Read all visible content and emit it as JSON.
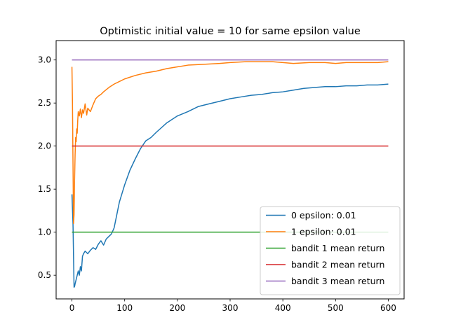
{
  "chart_data": {
    "type": "line",
    "title": "Optimistic initial value = 10 for same epsilon value",
    "xlabel": "",
    "ylabel": "",
    "xlim": [
      -30,
      630
    ],
    "ylim": [
      0.225,
      3.225
    ],
    "x_ticks": [
      0,
      100,
      200,
      300,
      400,
      500,
      600
    ],
    "x_tick_labels": [
      "0",
      "100",
      "200",
      "300",
      "400",
      "500",
      "600"
    ],
    "y_ticks": [
      0.5,
      1.0,
      1.5,
      2.0,
      2.5,
      3.0
    ],
    "y_tick_labels": [
      "0.5",
      "1.0",
      "1.5",
      "2.0",
      "2.5",
      "3.0"
    ],
    "grid": false,
    "legend_position": "lower-right",
    "series": [
      {
        "name": "0 epsilon: 0.01",
        "color": "#1f77b4",
        "x": [
          0,
          2,
          4,
          5,
          6,
          8,
          10,
          12,
          14,
          16,
          18,
          20,
          22,
          25,
          30,
          35,
          40,
          45,
          50,
          55,
          60,
          65,
          70,
          75,
          80,
          85,
          90,
          95,
          100,
          110,
          120,
          130,
          140,
          150,
          160,
          180,
          200,
          220,
          240,
          260,
          280,
          300,
          320,
          340,
          360,
          380,
          400,
          420,
          440,
          460,
          480,
          500,
          520,
          540,
          560,
          580,
          600
        ],
        "y": [
          1.44,
          1.1,
          0.36,
          0.37,
          0.4,
          0.45,
          0.5,
          0.55,
          0.5,
          0.6,
          0.55,
          0.72,
          0.75,
          0.78,
          0.75,
          0.79,
          0.82,
          0.8,
          0.86,
          0.9,
          0.85,
          0.92,
          0.95,
          0.98,
          1.05,
          1.2,
          1.35,
          1.45,
          1.55,
          1.72,
          1.85,
          1.97,
          2.06,
          2.1,
          2.16,
          2.27,
          2.35,
          2.4,
          2.46,
          2.49,
          2.52,
          2.55,
          2.57,
          2.59,
          2.6,
          2.62,
          2.63,
          2.65,
          2.67,
          2.68,
          2.69,
          2.69,
          2.7,
          2.7,
          2.71,
          2.71,
          2.72
        ]
      },
      {
        "name": "1 epsilon: 0.01",
        "color": "#ff7f0e",
        "x": [
          0,
          1,
          2,
          3,
          4,
          5,
          6,
          7,
          8,
          9,
          10,
          11,
          12,
          14,
          16,
          18,
          20,
          22,
          25,
          28,
          30,
          35,
          40,
          45,
          50,
          55,
          60,
          70,
          80,
          90,
          100,
          120,
          140,
          160,
          180,
          200,
          220,
          250,
          280,
          300,
          330,
          350,
          380,
          400,
          420,
          450,
          480,
          500,
          520,
          550,
          580,
          600
        ],
        "y": [
          2.92,
          2.5,
          1.8,
          1.1,
          1.2,
          1.6,
          1.9,
          2.1,
          2.05,
          2.2,
          2.15,
          2.3,
          2.4,
          2.35,
          2.43,
          2.33,
          2.42,
          2.38,
          2.49,
          2.36,
          2.44,
          2.4,
          2.48,
          2.55,
          2.58,
          2.6,
          2.63,
          2.68,
          2.72,
          2.75,
          2.78,
          2.82,
          2.85,
          2.87,
          2.9,
          2.92,
          2.94,
          2.95,
          2.96,
          2.97,
          2.98,
          2.98,
          2.98,
          2.97,
          2.96,
          2.97,
          2.97,
          2.96,
          2.97,
          2.97,
          2.97,
          2.98
        ]
      },
      {
        "name": "bandit 1 mean return",
        "color": "#2ca02c",
        "x": [
          0,
          600
        ],
        "y": [
          1.0,
          1.0
        ]
      },
      {
        "name": "bandit 2 mean return",
        "color": "#d62728",
        "x": [
          0,
          600
        ],
        "y": [
          2.0,
          2.0
        ]
      },
      {
        "name": "bandit 3 mean return",
        "color": "#9467bd",
        "x": [
          0,
          600
        ],
        "y": [
          3.0,
          3.0
        ]
      }
    ]
  }
}
